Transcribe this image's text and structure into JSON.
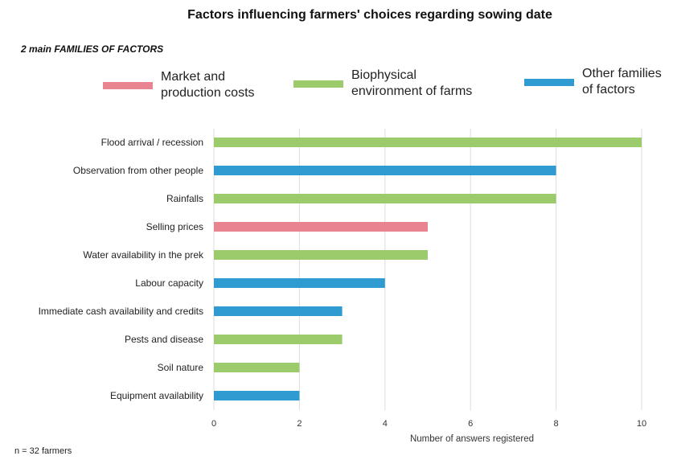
{
  "title": "Factors influencing farmers' choices regarding sowing date",
  "subtitle": "2 main FAMILIES OF FACTORS",
  "legend": [
    {
      "label": "Market and production costs",
      "color": "#e8848f"
    },
    {
      "label": "Biophysical environment of farms",
      "color": "#9ccb6b"
    },
    {
      "label": "Other families of factors",
      "color": "#2f9bd0"
    }
  ],
  "footnote": "n = 32 farmers",
  "chart_data": {
    "type": "bar",
    "orientation": "horizontal",
    "xlabel": "Number of answers registered",
    "ylabel": "",
    "xlim": [
      0,
      10
    ],
    "xticks": [
      "0",
      "2",
      "4",
      "6",
      "8",
      "10"
    ],
    "grid": "vertical",
    "legend_position": "top",
    "categories": [
      "Flood arrival / recession",
      "Observation from other people",
      "Rainfalls",
      "Selling prices",
      "Water availability in the prek",
      "Labour capacity",
      "Immediate cash availability and credits",
      "Pests and disease",
      "Soil nature",
      "Equipment availability"
    ],
    "values": [
      10,
      8,
      8,
      5,
      5,
      4,
      3,
      3,
      2,
      2
    ],
    "families": [
      "Biophysical environment of farms",
      "Other families of factors",
      "Biophysical environment of farms",
      "Market and production costs",
      "Biophysical environment of farms",
      "Other families of factors",
      "Other families of factors",
      "Biophysical environment of farms",
      "Biophysical environment of farms",
      "Other families of factors"
    ]
  }
}
